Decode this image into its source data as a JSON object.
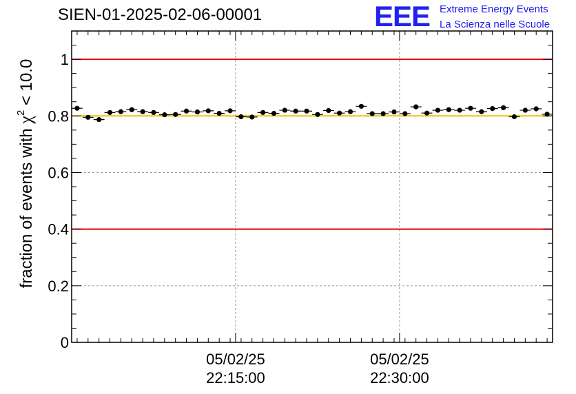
{
  "header": {
    "title": "SIEN-01-2025-02-06-00001",
    "logo_mark": "EEE",
    "logo_line1": "Extreme Energy Events",
    "logo_line2": "La Scienza nelle Scuole"
  },
  "colors": {
    "limit_line": "#e00000",
    "reference_line": "#f2c200",
    "marker": "#000000",
    "grid": "#999999",
    "logo": "#2222ee"
  },
  "chart_data": {
    "type": "scatter",
    "title": "SIEN-01-2025-02-06-00001",
    "ylabel_parts": [
      "fraction of events with ",
      "χ",
      "2",
      " < 10.0"
    ],
    "ylim": [
      0,
      1.1
    ],
    "y_ticks": [
      0,
      0.2,
      0.4,
      0.6,
      0.8,
      1
    ],
    "y_tick_labels": [
      "0",
      "0.2",
      "0.4",
      "0.6",
      "0.8",
      "1"
    ],
    "x_ticks": [
      {
        "date": "05/02/25",
        "time": "22:15:00",
        "index": 14.5
      },
      {
        "date": "05/02/25",
        "time": "22:30:00",
        "index": 29.5
      }
    ],
    "x_range_index": [
      -0.5,
      43.5
    ],
    "hlines": [
      {
        "y": 1.0,
        "kind": "limit"
      },
      {
        "y": 0.8,
        "kind": "reference"
      },
      {
        "y": 0.4,
        "kind": "limit"
      }
    ],
    "grid": true,
    "values": [
      0.827,
      0.795,
      0.787,
      0.812,
      0.815,
      0.822,
      0.815,
      0.812,
      0.804,
      0.805,
      0.817,
      0.814,
      0.818,
      0.809,
      0.818,
      0.797,
      0.796,
      0.812,
      0.809,
      0.82,
      0.817,
      0.817,
      0.805,
      0.819,
      0.81,
      0.815,
      0.834,
      0.808,
      0.808,
      0.814,
      0.808,
      0.832,
      0.81,
      0.82,
      0.822,
      0.82,
      0.827,
      0.815,
      0.826,
      0.829,
      0.797,
      0.82,
      0.825,
      0.806
    ],
    "y_error": 0.008
  }
}
